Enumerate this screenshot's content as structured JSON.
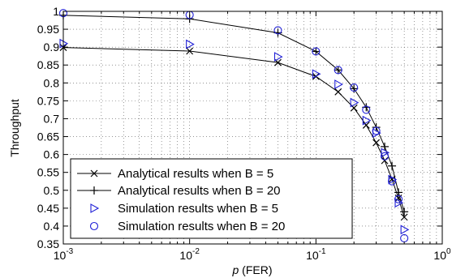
{
  "chart_data": {
    "type": "line",
    "xscale": "log",
    "xlim": [
      0.001,
      1
    ],
    "ylim": [
      0.35,
      1
    ],
    "xlabel_italic": "p",
    "xlabel_rest": " (FER)",
    "ylabel": "Throughput",
    "grid": "dotted",
    "legend_placement": "bottom-left",
    "x_ticks": [
      {
        "value": 0.001,
        "base": "10",
        "exp": "-3"
      },
      {
        "value": 0.01,
        "base": "10",
        "exp": "-2"
      },
      {
        "value": 0.1,
        "base": "10",
        "exp": "-1"
      },
      {
        "value": 1,
        "base": "10",
        "exp": "0"
      }
    ],
    "y_ticks": [
      {
        "value": 0.35,
        "label": "0.35"
      },
      {
        "value": 0.4,
        "label": "0.4"
      },
      {
        "value": 0.45,
        "label": "0.45"
      },
      {
        "value": 0.5,
        "label": "0.5"
      },
      {
        "value": 0.55,
        "label": "0.55"
      },
      {
        "value": 0.6,
        "label": "0.6"
      },
      {
        "value": 0.65,
        "label": "0.65"
      },
      {
        "value": 0.7,
        "label": "0.7"
      },
      {
        "value": 0.75,
        "label": "0.75"
      },
      {
        "value": 0.8,
        "label": "0.8"
      },
      {
        "value": 0.85,
        "label": "0.85"
      },
      {
        "value": 0.9,
        "label": "0.9"
      },
      {
        "value": 0.95,
        "label": "0.95"
      },
      {
        "value": 1,
        "label": "1"
      }
    ],
    "series": [
      {
        "name": "Analytical results when B = 5",
        "marker": "x",
        "line": true,
        "color": "#000000",
        "x": [
          0.001,
          0.01,
          0.05,
          0.1,
          0.15,
          0.2,
          0.25,
          0.3,
          0.35,
          0.4,
          0.45,
          0.5
        ],
        "y": [
          0.899,
          0.889,
          0.857,
          0.818,
          0.775,
          0.73,
          0.682,
          0.633,
          0.583,
          0.531,
          0.478,
          0.425
        ]
      },
      {
        "name": "Analytical results when B = 20",
        "marker": "+",
        "line": true,
        "color": "#000000",
        "x": [
          0.001,
          0.01,
          0.05,
          0.1,
          0.15,
          0.2,
          0.25,
          0.3,
          0.35,
          0.4,
          0.45,
          0.5
        ],
        "y": [
          0.989,
          0.979,
          0.94,
          0.888,
          0.836,
          0.784,
          0.732,
          0.676,
          0.622,
          0.568,
          0.494,
          0.44
        ]
      },
      {
        "name": "Simulation results when B = 5",
        "marker": "triangle-right",
        "line": false,
        "color": "#1f1fd6",
        "x": [
          0.001,
          0.01,
          0.05,
          0.1,
          0.15,
          0.2,
          0.25,
          0.3,
          0.35,
          0.4,
          0.45,
          0.5
        ],
        "y": [
          0.91,
          0.908,
          0.873,
          0.825,
          0.796,
          0.745,
          0.695,
          0.66,
          0.605,
          0.53,
          0.465,
          0.39
        ]
      },
      {
        "name": "Simulation results when B = 20",
        "marker": "circle",
        "line": false,
        "color": "#1f1fd6",
        "x": [
          0.001,
          0.01,
          0.05,
          0.1,
          0.15,
          0.2,
          0.25,
          0.3,
          0.35,
          0.4,
          0.45,
          0.5
        ],
        "y": [
          0.995,
          0.99,
          0.947,
          0.888,
          0.836,
          0.787,
          0.725,
          0.666,
          0.595,
          0.525,
          0.475,
          0.366
        ]
      }
    ]
  }
}
